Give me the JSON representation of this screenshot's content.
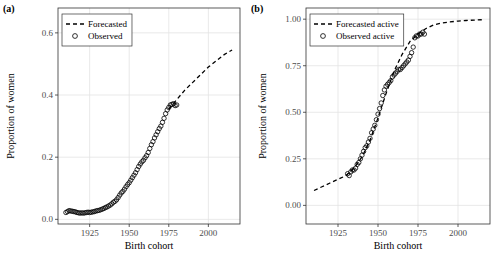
{
  "chart_data": [
    {
      "type": "scatter",
      "title": "(a)",
      "x_label": "Birth cohort",
      "y_label": "Proportion of women",
      "xlim": [
        1905,
        2020
      ],
      "xticks": [
        1925,
        1950,
        1975,
        2000
      ],
      "ylim": [
        -0.015,
        0.68
      ],
      "yticks": [
        {
          "value": 0,
          "label": "0.0"
        },
        0.2,
        0.4,
        0.6
      ],
      "grid": true,
      "legend": "top-left",
      "series": [
        {
          "name": "Forecasted",
          "type": "line",
          "color": "#000000",
          "line_style": "dashed",
          "x": [
            1975,
            1980,
            1985,
            1990,
            1995,
            2000,
            2005,
            2010,
            2015
          ],
          "values": [
            0.355,
            0.385,
            0.415,
            0.44,
            0.465,
            0.49,
            0.51,
            0.53,
            0.545
          ]
        },
        {
          "name": "Observed",
          "type": "scatter",
          "color": "#000000",
          "marker": "circle",
          "x": [
            1910,
            1911,
            1912,
            1913,
            1914,
            1915,
            1916,
            1917,
            1918,
            1919,
            1920,
            1921,
            1922,
            1923,
            1924,
            1925,
            1926,
            1927,
            1928,
            1929,
            1930,
            1931,
            1932,
            1933,
            1934,
            1935,
            1936,
            1937,
            1938,
            1939,
            1940,
            1941,
            1942,
            1943,
            1944,
            1945,
            1946,
            1947,
            1948,
            1949,
            1950,
            1951,
            1952,
            1953,
            1954,
            1955,
            1956,
            1957,
            1958,
            1959,
            1960,
            1961,
            1962,
            1963,
            1964,
            1965,
            1966,
            1967,
            1968,
            1969,
            1970,
            1971,
            1972,
            1973,
            1974,
            1975,
            1976,
            1977,
            1978,
            1979,
            1980
          ],
          "values": [
            0.022,
            0.025,
            0.028,
            0.027,
            0.026,
            0.025,
            0.024,
            0.022,
            0.021,
            0.02,
            0.021,
            0.02,
            0.021,
            0.022,
            0.023,
            0.022,
            0.023,
            0.024,
            0.025,
            0.027,
            0.028,
            0.029,
            0.031,
            0.033,
            0.035,
            0.038,
            0.04,
            0.043,
            0.046,
            0.05,
            0.055,
            0.058,
            0.063,
            0.07,
            0.078,
            0.085,
            0.09,
            0.097,
            0.105,
            0.112,
            0.118,
            0.126,
            0.134,
            0.142,
            0.15,
            0.16,
            0.17,
            0.178,
            0.185,
            0.19,
            0.198,
            0.205,
            0.215,
            0.228,
            0.24,
            0.25,
            0.262,
            0.272,
            0.282,
            0.292,
            0.3,
            0.312,
            0.325,
            0.34,
            0.352,
            0.36,
            0.368,
            0.37,
            0.372,
            0.366,
            0.368
          ]
        }
      ]
    },
    {
      "type": "scatter",
      "title": "(b)",
      "x_label": "Birth cohort",
      "y_label": "Proportion of women",
      "xlim": [
        1905,
        2020
      ],
      "xticks": [
        1925,
        1950,
        1975,
        2000
      ],
      "ylim": [
        -0.1,
        1.06
      ],
      "yticks": [
        {
          "value": 0,
          "label": "0.00"
        },
        0.25,
        {
          "value": 0.5,
          "label": "0.50"
        },
        0.75,
        {
          "value": 1,
          "label": "1.00"
        }
      ],
      "grid": true,
      "legend": "top-left",
      "series": [
        {
          "name": "Forecasted active",
          "type": "line",
          "color": "#000000",
          "line_style": "dashed",
          "x": [
            1910,
            1915,
            1920,
            1925,
            1930,
            1935,
            1940,
            1945,
            1950,
            1955,
            1960,
            1965,
            1970,
            1975,
            1980,
            1985,
            1990,
            1995,
            2000,
            2005,
            2010,
            2015
          ],
          "values": [
            0.08,
            0.1,
            0.12,
            0.14,
            0.16,
            0.2,
            0.26,
            0.35,
            0.47,
            0.6,
            0.72,
            0.81,
            0.88,
            0.92,
            0.95,
            0.97,
            0.98,
            0.985,
            0.99,
            0.993,
            0.995,
            0.997
          ]
        },
        {
          "name": "Observed active",
          "type": "scatter",
          "color": "#000000",
          "marker": "circle",
          "x": [
            1931,
            1932,
            1933,
            1934,
            1935,
            1936,
            1937,
            1938,
            1939,
            1940,
            1941,
            1942,
            1943,
            1944,
            1945,
            1946,
            1947,
            1948,
            1949,
            1950,
            1951,
            1952,
            1953,
            1954,
            1955,
            1956,
            1957,
            1958,
            1959,
            1960,
            1961,
            1962,
            1963,
            1964,
            1965,
            1966,
            1967,
            1968,
            1969,
            1970,
            1971,
            1972,
            1973,
            1974,
            1975,
            1976,
            1977,
            1978,
            1979
          ],
          "values": [
            0.17,
            0.16,
            0.18,
            0.19,
            0.19,
            0.2,
            0.22,
            0.23,
            0.25,
            0.27,
            0.29,
            0.31,
            0.32,
            0.34,
            0.36,
            0.39,
            0.41,
            0.43,
            0.46,
            0.49,
            0.52,
            0.55,
            0.59,
            0.62,
            0.64,
            0.65,
            0.66,
            0.67,
            0.69,
            0.7,
            0.71,
            0.72,
            0.73,
            0.73,
            0.74,
            0.75,
            0.76,
            0.77,
            0.78,
            0.8,
            0.82,
            0.85,
            0.9,
            0.91,
            0.91,
            0.92,
            0.92,
            0.93,
            0.92
          ]
        }
      ]
    }
  ]
}
